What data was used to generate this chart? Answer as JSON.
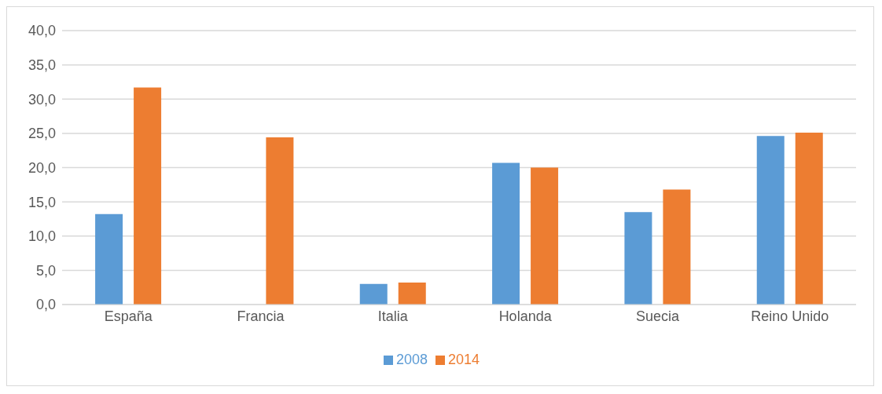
{
  "chart_data": {
    "type": "bar",
    "categories": [
      "España",
      "Francia",
      "Italia",
      "Holanda",
      "Suecia",
      "Reino Unido"
    ],
    "series": [
      {
        "name": "2008",
        "color": "#5b9bd5",
        "values": [
          13.2,
          null,
          3.0,
          20.7,
          13.5,
          24.6
        ]
      },
      {
        "name": "2014",
        "color": "#ed7d31",
        "values": [
          31.7,
          24.4,
          3.2,
          20.0,
          16.8,
          25.1
        ]
      }
    ],
    "ylim": [
      0,
      40
    ],
    "yticks": [
      {
        "value": 0,
        "label": "0,0"
      },
      {
        "value": 5,
        "label": "5,0"
      },
      {
        "value": 10,
        "label": "10,0"
      },
      {
        "value": 15,
        "label": "15,0"
      },
      {
        "value": 20,
        "label": "20,0"
      },
      {
        "value": 25,
        "label": "25,0"
      },
      {
        "value": 30,
        "label": "30,0"
      },
      {
        "value": 35,
        "label": "35,0"
      },
      {
        "value": 40,
        "label": "40,0"
      }
    ],
    "grid": "y",
    "legend": "bottom"
  }
}
